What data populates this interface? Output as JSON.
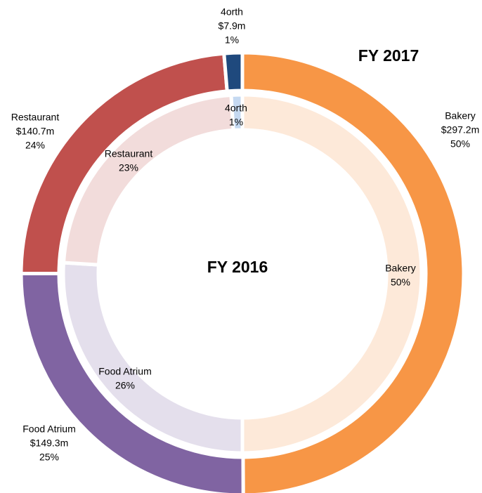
{
  "chart_data": {
    "type": "donut",
    "categories": [
      "Bakery",
      "Food Atrium",
      "Restaurant",
      "4orth"
    ],
    "series": [
      {
        "name": "FY 2016",
        "values": [
          50,
          26,
          23,
          1
        ],
        "value_labels": [
          "50%",
          "26%",
          "23%",
          "1%"
        ],
        "colors": [
          "#fde9d9",
          "#e4dfec",
          "#f2dcdb",
          "#c5d9f1"
        ]
      },
      {
        "name": "FY 2017",
        "values": [
          297.2,
          149.3,
          140.7,
          7.9
        ],
        "value_labels": [
          "$297.2m",
          "$149.3m",
          "$140.7m",
          "$7.9m"
        ],
        "percent_labels": [
          "50%",
          "25%",
          "24%",
          "1%"
        ],
        "colors": [
          "#f79646",
          "#8064a2",
          "#c0504d",
          "#1f497d"
        ]
      }
    ]
  }
}
